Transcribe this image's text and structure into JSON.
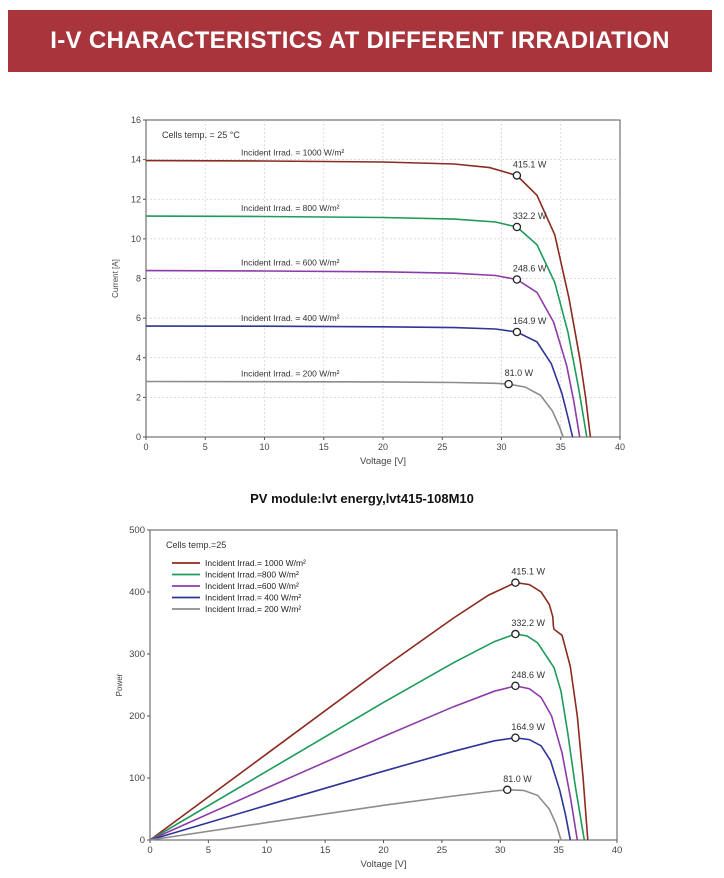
{
  "header": {
    "title": "I-V CHARACTERISTICS AT DIFFERENT IRRADIATION"
  },
  "chart_data": [
    {
      "type": "line",
      "title": "",
      "xlabel": "Voltage [V]",
      "ylabel": "Current [A]",
      "xlim": [
        0,
        40
      ],
      "ylim": [
        0,
        16
      ],
      "x_ticks": [
        "0",
        "5",
        "10",
        "15",
        "20",
        "25",
        "30",
        "35",
        "40"
      ],
      "y_ticks": [
        "0",
        "2",
        "4",
        "6",
        "8",
        "10",
        "12",
        "14",
        "16"
      ],
      "grid": true,
      "annotation": "Cells temp. = 25 °C",
      "series": [
        {
          "name": "Incident Irrad. = 1000 W/m²",
          "color": "#8b2a1f",
          "isc": 13.95,
          "voc": 37.5,
          "mpp": {
            "x": 31.3,
            "y": 13.2,
            "label": "415.1 W"
          },
          "points": [
            [
              0,
              13.95
            ],
            [
              10,
              13.93
            ],
            [
              20,
              13.88
            ],
            [
              26,
              13.78
            ],
            [
              29,
              13.6
            ],
            [
              31.3,
              13.2
            ],
            [
              33,
              12.2
            ],
            [
              34.5,
              10.2
            ],
            [
              35.7,
              7.0
            ],
            [
              36.6,
              4.0
            ],
            [
              37.1,
              2.0
            ],
            [
              37.5,
              0
            ]
          ]
        },
        {
          "name": "Incident Irrad. = 800 W/m²",
          "color": "#1c9b5a",
          "isc": 11.15,
          "voc": 37.2,
          "mpp": {
            "x": 31.3,
            "y": 10.6,
            "label": "332.2 W"
          },
          "points": [
            [
              0,
              11.15
            ],
            [
              10,
              11.13
            ],
            [
              20,
              11.08
            ],
            [
              26,
              11.0
            ],
            [
              29.5,
              10.85
            ],
            [
              31.3,
              10.6
            ],
            [
              33,
              9.7
            ],
            [
              34.5,
              7.8
            ],
            [
              35.6,
              5.3
            ],
            [
              36.5,
              2.5
            ],
            [
              37.2,
              0
            ]
          ]
        },
        {
          "name": "Incident Irrad. = 600 W/m²",
          "color": "#8d3ba8",
          "isc": 8.4,
          "voc": 36.6,
          "mpp": {
            "x": 31.3,
            "y": 7.95,
            "label": "248.6 W"
          },
          "points": [
            [
              0,
              8.4
            ],
            [
              10,
              8.38
            ],
            [
              20,
              8.34
            ],
            [
              26,
              8.27
            ],
            [
              29.5,
              8.15
            ],
            [
              31.3,
              7.95
            ],
            [
              33,
              7.3
            ],
            [
              34.4,
              5.8
            ],
            [
              35.5,
              3.6
            ],
            [
              36.1,
              1.8
            ],
            [
              36.6,
              0
            ]
          ]
        },
        {
          "name": "Incident Irrad. = 400 W/m²",
          "color": "#2f3497",
          "isc": 5.6,
          "voc": 36.0,
          "mpp": {
            "x": 31.3,
            "y": 5.3,
            "label": "164.9 W"
          },
          "points": [
            [
              0,
              5.6
            ],
            [
              10,
              5.59
            ],
            [
              20,
              5.56
            ],
            [
              26,
              5.52
            ],
            [
              29.5,
              5.45
            ],
            [
              31.3,
              5.3
            ],
            [
              33,
              4.8
            ],
            [
              34.2,
              3.7
            ],
            [
              35.1,
              2.2
            ],
            [
              35.6,
              1.0
            ],
            [
              36.0,
              0
            ]
          ]
        },
        {
          "name": "Incident Irrad. = 200 W/m²",
          "color": "#8c8c8c",
          "isc": 2.8,
          "voc": 35.2,
          "mpp": {
            "x": 30.6,
            "y": 2.67,
            "label": "81.0 W"
          },
          "points": [
            [
              0,
              2.8
            ],
            [
              10,
              2.79
            ],
            [
              20,
              2.78
            ],
            [
              26,
              2.75
            ],
            [
              29.5,
              2.71
            ],
            [
              30.6,
              2.67
            ],
            [
              32,
              2.52
            ],
            [
              33.3,
              2.1
            ],
            [
              34.3,
              1.3
            ],
            [
              34.9,
              0.5
            ],
            [
              35.2,
              0
            ]
          ]
        }
      ]
    },
    {
      "type": "line",
      "title": "PV module:lvt energy,lvt415-108M10",
      "xlabel": "Voltage [V]",
      "ylabel": "Power",
      "xlim": [
        0,
        40
      ],
      "ylim": [
        0,
        500
      ],
      "x_ticks": [
        "0",
        "5",
        "10",
        "15",
        "20",
        "25",
        "30",
        "35",
        "40"
      ],
      "y_ticks": [
        "0",
        "100",
        "200",
        "300",
        "400",
        "500"
      ],
      "grid": false,
      "annotation": "Cells temp.=25",
      "legend": "top-left",
      "series": [
        {
          "name": "Incident Irrad.= 1000 W/m²",
          "color": "#8b2a1f",
          "mpp": {
            "x": 31.3,
            "y": 415.1,
            "label": "415.1 W"
          },
          "points": [
            [
              0,
              0
            ],
            [
              10,
              139
            ],
            [
              20,
              278
            ],
            [
              26,
              358
            ],
            [
              29,
              395
            ],
            [
              31.3,
              415.1
            ],
            [
              32.5,
              412
            ],
            [
              33.5,
              400
            ],
            [
              34.2,
              380
            ],
            [
              34.5,
              360
            ],
            [
              34.55,
              345
            ],
            [
              34.6,
              340
            ],
            [
              35.3,
              330
            ],
            [
              36,
              280
            ],
            [
              36.6,
              200
            ],
            [
              37.1,
              100
            ],
            [
              37.5,
              0
            ]
          ]
        },
        {
          "name": "Incident Irrad.=800 W/m²",
          "color": "#1c9b5a",
          "mpp": {
            "x": 31.3,
            "y": 332.2,
            "label": "332.2 W"
          },
          "points": [
            [
              0,
              0
            ],
            [
              10,
              111
            ],
            [
              20,
              222
            ],
            [
              26,
              286
            ],
            [
              29.5,
              320
            ],
            [
              31.3,
              332.2
            ],
            [
              32.3,
              329
            ],
            [
              33.2,
              318
            ],
            [
              34,
              295
            ],
            [
              34.6,
              278
            ],
            [
              35.2,
              240
            ],
            [
              35.8,
              170
            ],
            [
              36.4,
              90
            ],
            [
              37.2,
              0
            ]
          ]
        },
        {
          "name": "Incident Irrad.=600 W/m²",
          "color": "#8d3ba8",
          "mpp": {
            "x": 31.3,
            "y": 248.6,
            "label": "248.6 W"
          },
          "points": [
            [
              0,
              0
            ],
            [
              10,
              84
            ],
            [
              20,
              167
            ],
            [
              26,
              215
            ],
            [
              29.5,
              240
            ],
            [
              31.3,
              248.6
            ],
            [
              32.5,
              244
            ],
            [
              33.5,
              230
            ],
            [
              34.4,
              200
            ],
            [
              35.3,
              140
            ],
            [
              36,
              70
            ],
            [
              36.6,
              0
            ]
          ]
        },
        {
          "name": "Incident Irrad.= 400 W/m²",
          "color": "#2f3497",
          "mpp": {
            "x": 31.3,
            "y": 164.9,
            "label": "164.9 W"
          },
          "points": [
            [
              0,
              0
            ],
            [
              10,
              56
            ],
            [
              20,
              111
            ],
            [
              26,
              143
            ],
            [
              29.5,
              160
            ],
            [
              31.3,
              164.9
            ],
            [
              32.5,
              162
            ],
            [
              33.5,
              152
            ],
            [
              34.3,
              128
            ],
            [
              35.1,
              80
            ],
            [
              35.6,
              40
            ],
            [
              36,
              0
            ]
          ]
        },
        {
          "name": "Incident Irrad.= 200 W/m²",
          "color": "#8c8c8c",
          "mpp": {
            "x": 30.6,
            "y": 81.0,
            "label": "81.0 W"
          },
          "points": [
            [
              0,
              0
            ],
            [
              10,
              28
            ],
            [
              20,
              56
            ],
            [
              26,
              71
            ],
            [
              29.5,
              79
            ],
            [
              30.6,
              81.0
            ],
            [
              32,
              80
            ],
            [
              33.2,
              72
            ],
            [
              34.2,
              50
            ],
            [
              34.8,
              25
            ],
            [
              35.2,
              0
            ]
          ]
        }
      ]
    }
  ]
}
